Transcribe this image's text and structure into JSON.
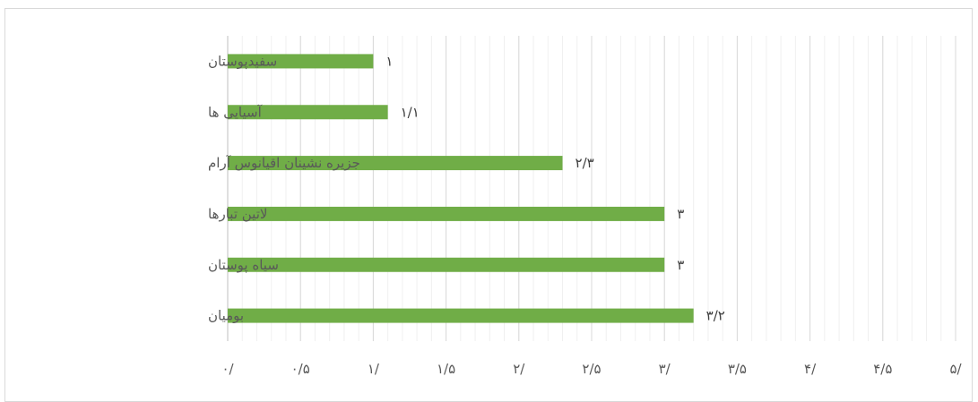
{
  "chart_data": {
    "type": "bar",
    "orientation": "horizontal",
    "categories": [
      "سفیدپوستان",
      "آسیایی ها",
      "جزیره نشینان اقیانوس آرام",
      "لاتین تبارها",
      "سیاه پوستان",
      "بومیان"
    ],
    "values": [
      1,
      1.1,
      2.3,
      3,
      3,
      3.2
    ],
    "value_labels": [
      "۱",
      "۱/۱",
      "۲/۳",
      "۳",
      "۳",
      "۳/۲"
    ],
    "xlim": [
      0,
      5
    ],
    "major_step": 0.5,
    "minor_step": 0.1,
    "tick_labels": [
      "۰/",
      "۰/۵",
      "۱/",
      "۱/۵",
      "۲/",
      "۲/۵",
      "۳/",
      "۳/۵",
      "۴/",
      "۴/۵",
      "۵/"
    ],
    "grid": true,
    "legend": "none",
    "title": "",
    "xlabel": "",
    "ylabel": "",
    "colors": {
      "bar": "#70ad47",
      "major_grid": "#d9d9d9",
      "minor_grid": "#f0f0f0",
      "axis": "#bfbfbf",
      "text": "#595959"
    }
  }
}
